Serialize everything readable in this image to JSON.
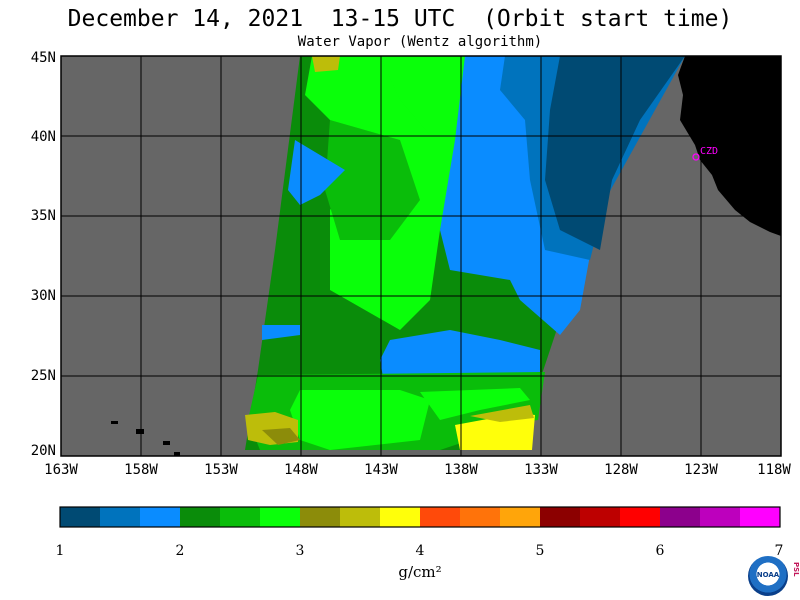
{
  "header": {
    "title": "December 14, 2021  13-15 UTC  (Orbit start time)",
    "subtitle": "Water Vapor (Wentz algorithm)"
  },
  "map": {
    "lat_labels": [
      "45N",
      "40N",
      "35N",
      "30N",
      "25N",
      "20N"
    ],
    "lon_labels": [
      "163W",
      "158W",
      "153W",
      "148W",
      "143W",
      "138W",
      "133W",
      "128W",
      "123W",
      "118W"
    ],
    "station_label": "CZD",
    "colors": {
      "background": "#666666",
      "land": "#000000",
      "grid": "#000000"
    }
  },
  "colorbar": {
    "ticks": [
      "1",
      "2",
      "3",
      "4",
      "5",
      "6",
      "7"
    ],
    "units": "g/cm²",
    "colors": [
      "#004a73",
      "#0073bd",
      "#0a8cff",
      "#0a8c0a",
      "#0abd0a",
      "#0aff0a",
      "#8c8c0a",
      "#bdbd0a",
      "#ffff0a",
      "#ff4a0a",
      "#ff730a",
      "#ffa50a",
      "#8c0000",
      "#bd0000",
      "#ff0000",
      "#8c008c",
      "#bd00bd",
      "#ff00ff"
    ]
  },
  "logo": {
    "text": "NOAA",
    "side_text": "PSL"
  }
}
